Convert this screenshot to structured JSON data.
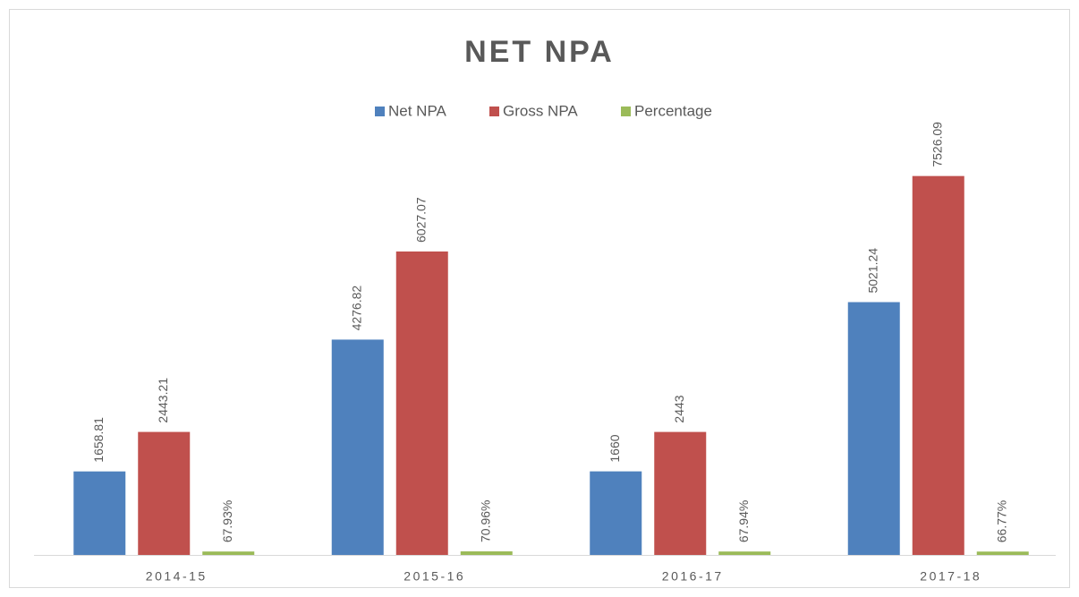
{
  "chart_data": {
    "type": "bar",
    "title": "NET NPA",
    "categories": [
      "2014-15",
      "2015-16",
      "2016-17",
      "2017-18"
    ],
    "series": [
      {
        "name": "Net NPA",
        "color": "#4f81bd",
        "values": [
          1658.81,
          4276.82,
          1660,
          5021.24
        ]
      },
      {
        "name": "Gross NPA",
        "color": "#c0504d",
        "values": [
          2443.21,
          6027.07,
          2443,
          7526.09
        ]
      },
      {
        "name": "Percentage",
        "color": "#9bbb59",
        "values": [
          67.93,
          70.96,
          67.94,
          66.77
        ],
        "value_labels": [
          "67.93%",
          "70.96%",
          "67.94%",
          "66.77%"
        ]
      }
    ],
    "ylim": [
      0,
      8000
    ],
    "legend": "top"
  }
}
